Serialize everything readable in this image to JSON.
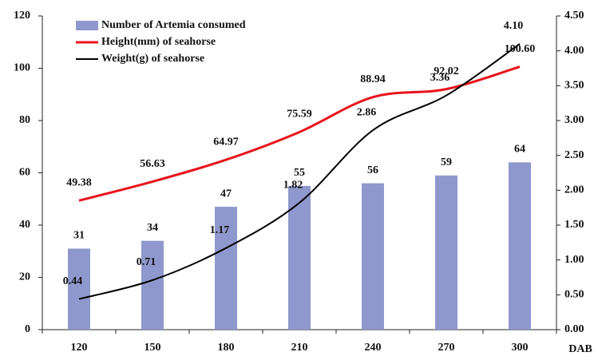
{
  "chart_data": {
    "type": "bar_line",
    "x_label": "DAB",
    "categories": [
      "120",
      "150",
      "180",
      "210",
      "240",
      "270",
      "300"
    ],
    "series": [
      {
        "name": "Number of Artemia consumed",
        "type": "bar",
        "color": "#8f98cc",
        "values": [
          31,
          34,
          47,
          55,
          56,
          59,
          64
        ]
      },
      {
        "name": "Height(mm) of seahorse",
        "type": "line",
        "color": "#e8141b",
        "values": [
          49.38,
          56.63,
          64.97,
          75.59,
          88.94,
          92.02,
          100.6
        ],
        "value_labels": [
          "49.38",
          "56.63",
          "64.97",
          "75.59",
          "88.94",
          "92.02",
          "100.60"
        ]
      },
      {
        "name": "Weight(g) of seahorse",
        "type": "line",
        "axis": "y2",
        "color": "#000000",
        "values": [
          0.44,
          0.71,
          1.17,
          1.82,
          2.86,
          3.36,
          4.1
        ],
        "value_labels": [
          "0.44",
          "0.71",
          "1.17",
          "1.82",
          "2.86",
          "3.36",
          "4.10"
        ]
      }
    ],
    "ylim": [
      0,
      120
    ],
    "yticks": [
      0,
      20,
      40,
      60,
      80,
      100,
      120
    ],
    "y2lim": [
      0,
      4.5
    ],
    "y2ticks": [
      {
        "value": 0,
        "label": "0.00"
      },
      {
        "value": 0.5,
        "label": "0.50"
      },
      {
        "value": 1,
        "label": "1.00"
      },
      {
        "value": 1.5,
        "label": "1.50"
      },
      {
        "value": 2,
        "label": "2.00"
      },
      {
        "value": 2.5,
        "label": "2.50"
      },
      {
        "value": 3,
        "label": "3.00"
      },
      {
        "value": 3.5,
        "label": "3.50"
      },
      {
        "value": 4,
        "label": "4.00"
      },
      {
        "value": 4.5,
        "label": "4.50"
      }
    ],
    "legend": "upper left"
  }
}
